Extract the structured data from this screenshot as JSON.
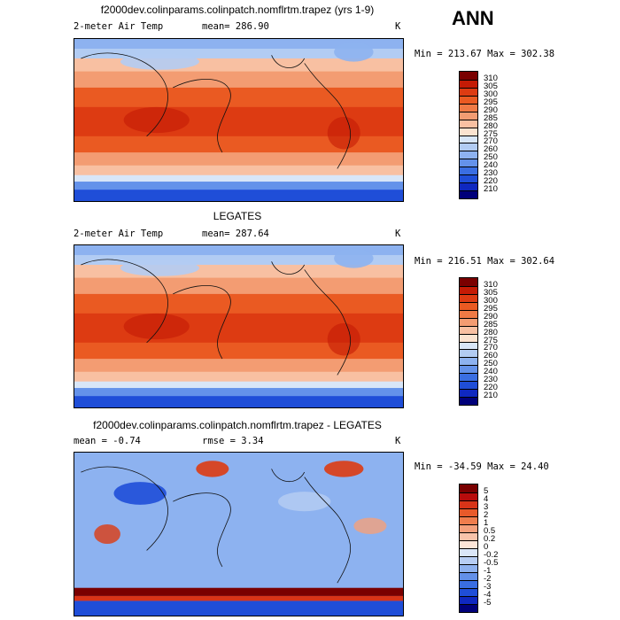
{
  "season_label": "ANN",
  "panels": [
    {
      "title": "f2000dev.colinparams.colinpatch.nomflrtm.trapez (yrs 1-9)",
      "variable": "2-meter Air Temp",
      "stat_left": "mean=  286.90",
      "stat_right": "",
      "units": "K",
      "range_text": "Min = 213.67 Max = 302.38",
      "levels": [
        "310",
        "305",
        "300",
        "295",
        "290",
        "285",
        "280",
        "275",
        "270",
        "260",
        "250",
        "240",
        "230",
        "220",
        "210"
      ],
      "colors": [
        "#7a0000",
        "#c41b05",
        "#dd3b12",
        "#ea5a22",
        "#f07a45",
        "#f39c72",
        "#f8c0a2",
        "#fbe3d0",
        "#d8e6f8",
        "#b2ccf3",
        "#8db2f0",
        "#6492ea",
        "#3a6ee2",
        "#1f4ed8",
        "#0f28c0",
        "#00007a"
      ]
    },
    {
      "title": "LEGATES",
      "variable": "2-meter Air Temp",
      "stat_left": "mean=  287.64",
      "stat_right": "",
      "units": "K",
      "range_text": "Min = 216.51 Max = 302.64",
      "levels": [
        "310",
        "305",
        "300",
        "295",
        "290",
        "285",
        "280",
        "275",
        "270",
        "260",
        "250",
        "240",
        "230",
        "220",
        "210"
      ],
      "colors": [
        "#7a0000",
        "#c41b05",
        "#dd3b12",
        "#ea5a22",
        "#f07a45",
        "#f39c72",
        "#f8c0a2",
        "#fbe3d0",
        "#d8e6f8",
        "#b2ccf3",
        "#8db2f0",
        "#6492ea",
        "#3a6ee2",
        "#1f4ed8",
        "#0f28c0",
        "#00007a"
      ]
    },
    {
      "title": "f2000dev.colinparams.colinpatch.nomflrtm.trapez - LEGATES",
      "variable": "mean =   -0.74",
      "stat_left": "rmse =    3.34",
      "stat_right": "",
      "units": "K",
      "range_text": "Min = -34.59 Max =  24.40",
      "levels": [
        "5",
        "4",
        "3",
        "2",
        "1",
        "0.5",
        "0.2",
        "0",
        "-0.2",
        "-0.5",
        "-1",
        "-2",
        "-3",
        "-4",
        "-5"
      ],
      "colors": [
        "#7a0000",
        "#b80c0c",
        "#d83418",
        "#e85a2a",
        "#ef7d4d",
        "#f4a07c",
        "#f8c3aa",
        "#fce5d8",
        "#dae6f8",
        "#b7cdf3",
        "#8eb1ee",
        "#6390e8",
        "#3a6ee2",
        "#1f4ed8",
        "#0f28c0",
        "#00007a"
      ]
    }
  ]
}
